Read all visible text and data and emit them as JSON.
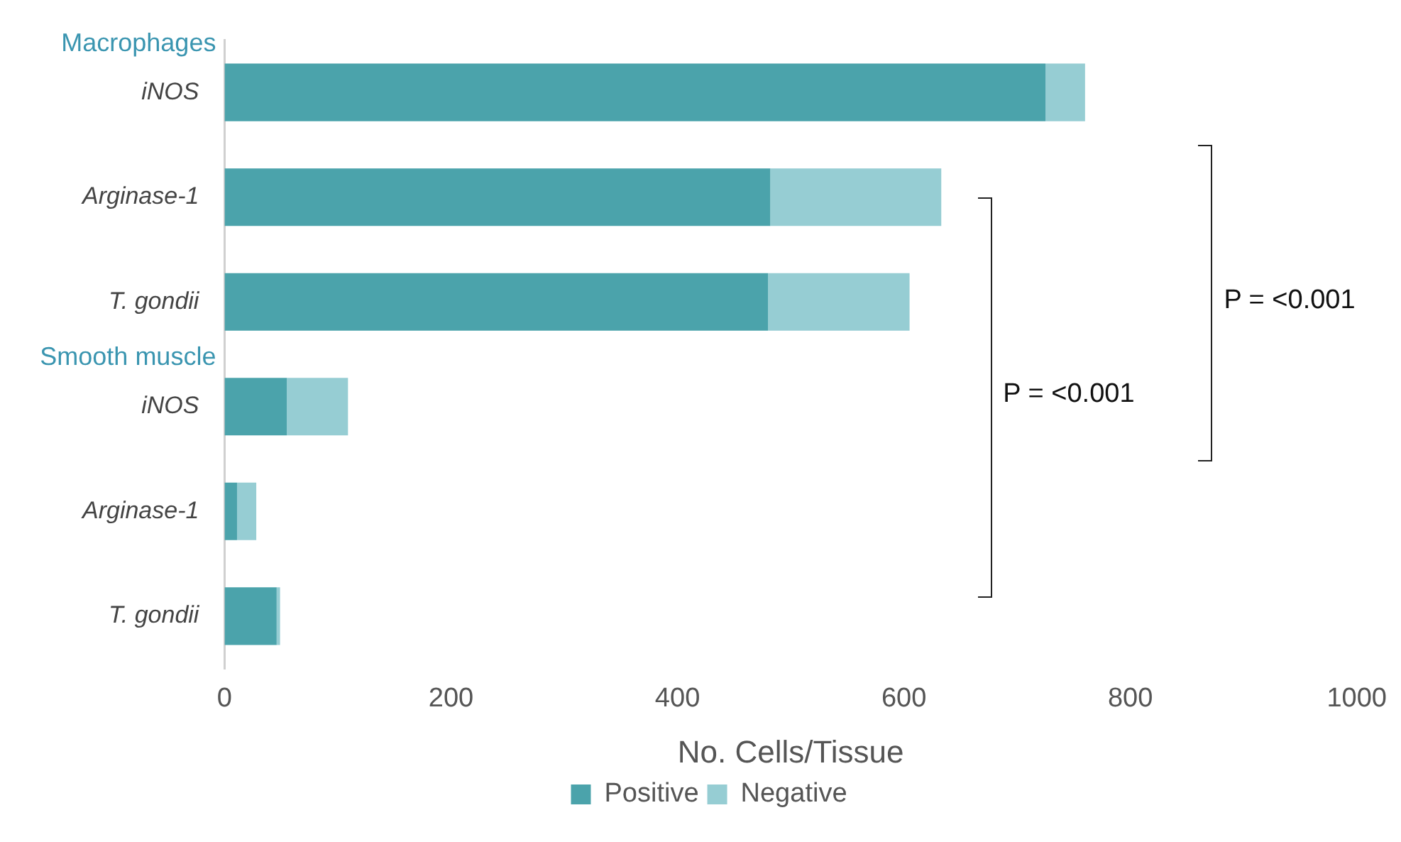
{
  "chart_data": {
    "type": "bar",
    "orientation": "horizontal",
    "stacked": true,
    "xlabel": "No. Cells/Tissue",
    "categories": [
      "iNOS",
      "Arginase-1",
      "T. gondii",
      "iNOS",
      "Arginase-1",
      "T. gondii"
    ],
    "series": [
      {
        "name": "Positive",
        "color": "#4ba3ab",
        "values": [
          725,
          482,
          480,
          55,
          11,
          46
        ]
      },
      {
        "name": "Negative",
        "color": "#96cdd3",
        "values": [
          35,
          151,
          125,
          54,
          17,
          3
        ]
      }
    ],
    "xlim": [
      0,
      1000
    ],
    "xticks": [
      0,
      200,
      400,
      600,
      800,
      1000
    ],
    "grid": false,
    "legend": "bottom",
    "annotations": [
      "Macrophages",
      "Smooth muscle",
      "P = <0.001",
      "P = <0.001"
    ]
  }
}
